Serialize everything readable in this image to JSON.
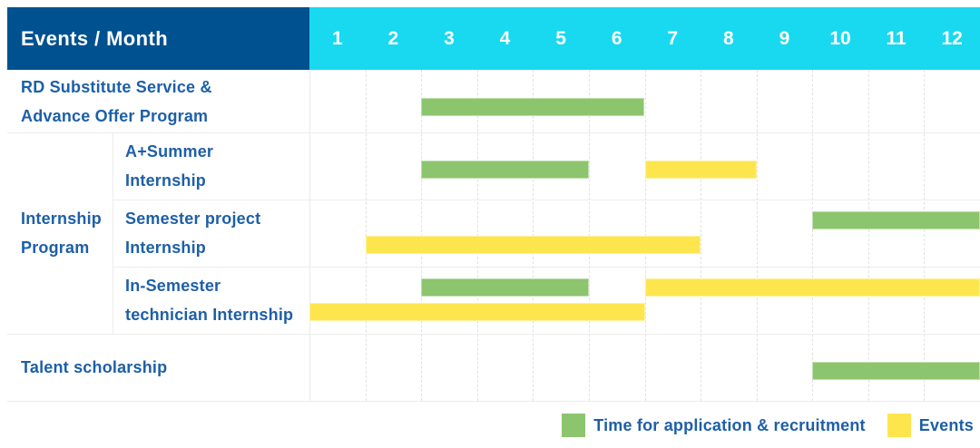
{
  "header": {
    "corner_label": "Events / Month",
    "months": [
      "1",
      "2",
      "3",
      "4",
      "5",
      "6",
      "7",
      "8",
      "9",
      "10",
      "11",
      "12"
    ]
  },
  "colors": {
    "header_bg": "#00518f",
    "month_strip_bg": "#18d9f0",
    "header_text": "#ffffff",
    "label_text": "#1d5fa8",
    "application": "#8cc56d",
    "event": "#fde64d"
  },
  "group": {
    "label_lines": [
      "Internship",
      "Program"
    ],
    "name": "Internship Program"
  },
  "rows": [
    {
      "name": "RD Substitute Service & Advance Offer Program",
      "label_lines": [
        "RD Substitute Service &",
        "Advance Offer Program"
      ],
      "in_group": false,
      "bars": [
        {
          "type": "application",
          "start_month": 3,
          "end_month": 6,
          "lane": "single"
        }
      ]
    },
    {
      "name": "A+Summer Internship",
      "label_lines": [
        "A+Summer",
        "Internship"
      ],
      "in_group": true,
      "bars": [
        {
          "type": "application",
          "start_month": 3,
          "end_month": 5,
          "lane": "single"
        },
        {
          "type": "event",
          "start_month": 7,
          "end_month": 8,
          "lane": "single"
        }
      ]
    },
    {
      "name": "Semester project Internship",
      "label_lines": [
        "Semester project",
        "Internship"
      ],
      "in_group": true,
      "bars": [
        {
          "type": "application",
          "start_month": 10,
          "end_month": 12,
          "lane": "top"
        },
        {
          "type": "event",
          "start_month": 2,
          "end_month": 7,
          "lane": "bottom"
        }
      ]
    },
    {
      "name": "In-Semester technician Internship",
      "label_lines": [
        "In-Semester",
        "technician Internship"
      ],
      "in_group": true,
      "bars": [
        {
          "type": "application",
          "start_month": 3,
          "end_month": 5,
          "lane": "top"
        },
        {
          "type": "event",
          "start_month": 7,
          "end_month": 12,
          "lane": "top"
        },
        {
          "type": "event",
          "start_month": 1,
          "end_month": 6,
          "lane": "bottom"
        }
      ]
    },
    {
      "name": "Talent scholarship",
      "label_lines": [
        "Talent scholarship"
      ],
      "in_group": false,
      "bars": [
        {
          "type": "application",
          "start_month": 10,
          "end_month": 12,
          "lane": "single"
        }
      ]
    }
  ],
  "legend": [
    {
      "type": "application",
      "label": "Time for application & recruitment"
    },
    {
      "type": "event",
      "label": "Events"
    }
  ],
  "chart_data": {
    "type": "gantt",
    "title": "Events / Month",
    "x_label": "Month",
    "x_ticks": [
      1,
      2,
      3,
      4,
      5,
      6,
      7,
      8,
      9,
      10,
      11,
      12
    ],
    "x_range": [
      1,
      12
    ],
    "grid": true,
    "legend_position": "bottom-right",
    "legend": [
      {
        "label": "Time for application & recruitment",
        "color": "#8cc56d"
      },
      {
        "label": "Events",
        "color": "#fde64d"
      }
    ],
    "tasks": [
      {
        "name": "RD Substitute Service & Advance Offer Program",
        "group": null,
        "spans": [
          {
            "kind": "application & recruitment",
            "start_month": 3,
            "end_month": 6
          }
        ]
      },
      {
        "name": "A+Summer Internship",
        "group": "Internship Program",
        "spans": [
          {
            "kind": "application & recruitment",
            "start_month": 3,
            "end_month": 5
          },
          {
            "kind": "event",
            "start_month": 7,
            "end_month": 8
          }
        ]
      },
      {
        "name": "Semester project Internship",
        "group": "Internship Program",
        "spans": [
          {
            "kind": "application & recruitment",
            "start_month": 10,
            "end_month": 12
          },
          {
            "kind": "event",
            "start_month": 2,
            "end_month": 7
          }
        ]
      },
      {
        "name": "In-Semester technician Internship",
        "group": "Internship Program",
        "spans": [
          {
            "kind": "application & recruitment",
            "start_month": 3,
            "end_month": 5
          },
          {
            "kind": "event",
            "start_month": 7,
            "end_month": 12
          },
          {
            "kind": "event",
            "start_month": 1,
            "end_month": 6
          }
        ]
      },
      {
        "name": "Talent scholarship",
        "group": null,
        "spans": [
          {
            "kind": "application & recruitment",
            "start_month": 10,
            "end_month": 12
          }
        ]
      }
    ]
  }
}
